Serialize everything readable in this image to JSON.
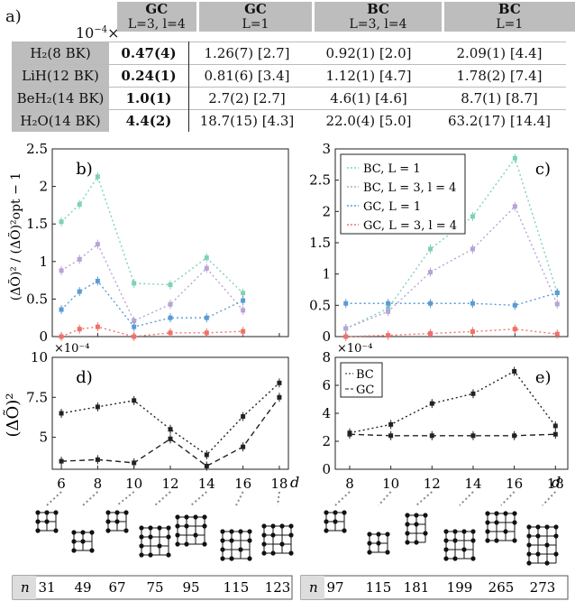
{
  "table": {
    "panel_label": "a)",
    "scale": "10",
    "scale_exp": "−4",
    "scale_times": "×",
    "headers": [
      {
        "method": "GC",
        "params": "L=3, l=4"
      },
      {
        "method": "GC",
        "params": "L=1"
      },
      {
        "method": "BC",
        "params": "L=3, l=4"
      },
      {
        "method": "BC",
        "params": "L=1"
      }
    ],
    "rows": [
      {
        "molecule": "H₂(8 BK)",
        "cells": [
          "0.47(4)",
          "1.26(7) [2.7]",
          "0.92(1) [2.0]",
          "2.09(1) [4.4]"
        ]
      },
      {
        "molecule": "LiH(12 BK)",
        "cells": [
          "0.24(1)",
          "0.81(6) [3.4]",
          "1.12(1) [4.7]",
          "1.78(2) [7.4]"
        ]
      },
      {
        "molecule": "BeH₂(14 BK)",
        "cells": [
          "1.0(1)",
          "2.7(2) [2.7]",
          "4.6(1) [4.6]",
          "8.7(1) [8.7]"
        ]
      },
      {
        "molecule": "H₂O(14 BK)",
        "cells": [
          "4.4(2)",
          "18.7(15) [4.3]",
          "22.0(4) [5.0]",
          "63.2(17) [14.4]"
        ]
      }
    ]
  },
  "chart_data": [
    {
      "panel": "b)",
      "type": "line",
      "ylabel": "(ΔÕ)² / (ΔÕ)²opt − 1",
      "ylim": [
        0,
        2.5
      ],
      "yticks": [
        "0",
        "0.5",
        "1",
        "1.5",
        "2",
        "2.5"
      ],
      "x": [
        6,
        7,
        8,
        10,
        12,
        14,
        16,
        18
      ],
      "series": [
        {
          "name": "BC, L = 1",
          "color": "#7fd1b9",
          "values": [
            1.53,
            1.76,
            2.13,
            0.71,
            0.69,
            1.05,
            0.58,
            null
          ]
        },
        {
          "name": "BC, L = 3, l = 4",
          "color": "#b7a3d6",
          "values": [
            0.88,
            1.03,
            1.23,
            0.21,
            0.43,
            0.91,
            0.35,
            null
          ]
        },
        {
          "name": "GC, L = 1",
          "color": "#5b9bd5",
          "values": [
            0.36,
            0.6,
            0.74,
            0.13,
            0.25,
            0.25,
            0.48,
            null
          ]
        },
        {
          "name": "GC, L = 3, l = 4",
          "color": "#f07068",
          "values": [
            0.0,
            0.1,
            0.13,
            0.0,
            0.05,
            0.05,
            0.07,
            null
          ]
        }
      ]
    },
    {
      "panel": "c)",
      "type": "line",
      "ylim": [
        0,
        3
      ],
      "yticks": [
        "0",
        "0.5",
        "1",
        "1.5",
        "2",
        "2.5",
        "3"
      ],
      "x": [
        8,
        10,
        12,
        14,
        16,
        18
      ],
      "legend": [
        "BC, L = 1",
        "BC, L = 3, l = 4",
        "GC, L = 1",
        "GC, L = 3, l = 4"
      ],
      "series": [
        {
          "name": "BC, L = 1",
          "color": "#7fd1b9",
          "values": [
            0.13,
            0.45,
            1.4,
            1.92,
            2.85,
            0.7
          ]
        },
        {
          "name": "BC, L = 3, l = 4",
          "color": "#b7a3d6",
          "values": [
            0.13,
            0.4,
            1.03,
            1.4,
            2.08,
            0.52
          ]
        },
        {
          "name": "GC, L = 1",
          "color": "#5b9bd5",
          "values": [
            0.53,
            0.53,
            0.53,
            0.53,
            0.5,
            0.7
          ]
        },
        {
          "name": "GC, L = 3, l = 4",
          "color": "#f07068",
          "values": [
            0.0,
            0.02,
            0.05,
            0.08,
            0.12,
            0.04
          ]
        }
      ]
    },
    {
      "panel": "d)",
      "type": "line",
      "ylabel": "(ΔÕ)²",
      "scale": "×10⁻⁴",
      "ylim": [
        3,
        10
      ],
      "yticks": [
        "5",
        "7.5",
        "10"
      ],
      "xlabel": "d",
      "xticks": [
        "6",
        "8",
        "10",
        "12",
        "14",
        "16",
        "18"
      ],
      "x": [
        6,
        8,
        10,
        12,
        14,
        16,
        18
      ],
      "series": [
        {
          "name": "BC",
          "values": [
            6.5,
            6.9,
            7.3,
            5.5,
            3.9,
            6.3,
            8.4
          ]
        },
        {
          "name": "GC",
          "values": [
            3.5,
            3.6,
            3.4,
            4.9,
            3.2,
            4.4,
            7.5
          ]
        }
      ]
    },
    {
      "panel": "e)",
      "type": "line",
      "scale": "×10⁻⁴",
      "ylim": [
        0,
        8
      ],
      "yticks": [
        "0",
        "2",
        "4",
        "6",
        "8"
      ],
      "xlabel": "d",
      "xticks": [
        "8",
        "10",
        "12",
        "14",
        "16",
        "18"
      ],
      "x": [
        8,
        10,
        12,
        14,
        16,
        18
      ],
      "legend": [
        "BC",
        "GC"
      ],
      "series": [
        {
          "name": "BC",
          "values": [
            2.6,
            3.2,
            4.7,
            5.4,
            7.0,
            3.1
          ]
        },
        {
          "name": "GC",
          "values": [
            2.5,
            2.4,
            2.4,
            2.4,
            2.4,
            2.5
          ]
        }
      ]
    }
  ],
  "n_left": {
    "label": "n",
    "values": [
      "31",
      "49",
      "67",
      "75",
      "95",
      "115",
      "123"
    ]
  },
  "n_right": {
    "label": "n",
    "values": [
      "97",
      "115",
      "181",
      "199",
      "265",
      "273"
    ]
  }
}
